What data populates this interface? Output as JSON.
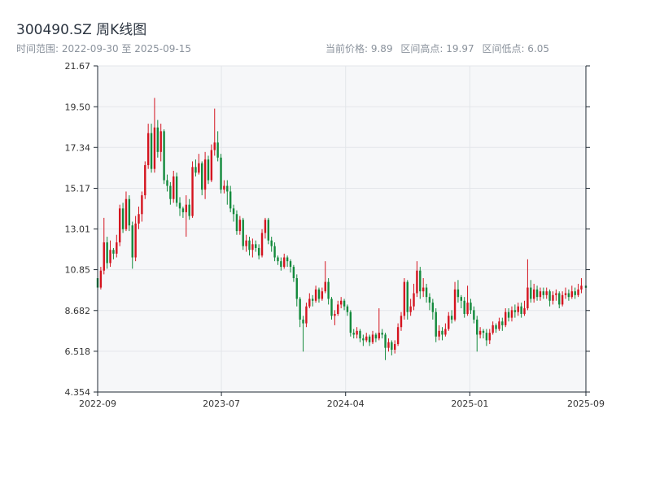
{
  "header": {
    "title": "300490.SZ 周K线图",
    "range_text": "时间范围: 2022-09-30 至 2025-09-15",
    "current_price": "当前价格: 9.89",
    "range_high": "区间高点: 19.97",
    "range_low": "区间低点: 6.05"
  },
  "colors": {
    "up": "#d4141f",
    "down": "#138a3c",
    "plot_bg": "#f6f7f9",
    "grid": "#e3e6ea",
    "axis": "#1f2933"
  },
  "chart_data": {
    "type": "candlestick",
    "title": "300490.SZ 周K线图",
    "x_start": "2022-09-30",
    "x_end": "2025-09-15",
    "ylim": [
      4.354,
      21.67
    ],
    "y_ticks": [
      "21.67",
      "19.50",
      "17.34",
      "15.17",
      "13.01",
      "10.85",
      "8.682",
      "6.518",
      "4.354"
    ],
    "x_ticks": [
      {
        "label": "2022-09",
        "date": "2022-09-30"
      },
      {
        "label": "2023-07",
        "date": "2023-07-01"
      },
      {
        "label": "2024-04",
        "date": "2024-04-01"
      },
      {
        "label": "2025-01",
        "date": "2025-01-01"
      },
      {
        "label": "2025-09",
        "date": "2025-09-15"
      }
    ],
    "grid": true,
    "candles": [
      [
        "2022-09-30",
        10.4,
        9.9,
        10.7,
        9.6
      ],
      [
        "2022-10-07",
        9.9,
        10.8,
        11.0,
        9.8
      ],
      [
        "2022-10-14",
        10.8,
        12.3,
        13.6,
        10.6
      ],
      [
        "2022-10-21",
        12.3,
        11.2,
        12.6,
        10.9
      ],
      [
        "2022-10-28",
        11.2,
        11.9,
        12.4,
        11.0
      ],
      [
        "2022-11-04",
        11.9,
        11.7,
        12.0,
        11.4
      ],
      [
        "2022-11-11",
        11.7,
        12.3,
        12.7,
        11.5
      ],
      [
        "2022-11-18",
        12.3,
        14.1,
        14.3,
        12.1
      ],
      [
        "2022-11-25",
        14.1,
        13.0,
        14.4,
        12.8
      ],
      [
        "2022-12-02",
        13.0,
        14.6,
        15.0,
        12.9
      ],
      [
        "2022-12-09",
        14.6,
        13.2,
        14.8,
        12.9
      ],
      [
        "2022-12-16",
        13.2,
        11.5,
        13.4,
        10.9
      ],
      [
        "2022-12-23",
        11.5,
        13.3,
        13.7,
        11.3
      ],
      [
        "2022-12-30",
        13.3,
        13.8,
        14.2,
        13.0
      ],
      [
        "2023-01-06",
        13.8,
        14.8,
        15.0,
        13.4
      ],
      [
        "2023-01-13",
        14.8,
        16.4,
        16.6,
        14.6
      ],
      [
        "2023-01-20",
        16.4,
        18.1,
        18.6,
        16.2
      ],
      [
        "2023-01-27",
        18.1,
        16.2,
        18.6,
        16.0
      ],
      [
        "2023-02-03",
        16.2,
        18.4,
        19.97,
        16.0
      ],
      [
        "2023-02-10",
        18.4,
        17.1,
        18.8,
        16.8
      ],
      [
        "2023-02-17",
        17.1,
        18.2,
        18.6,
        16.6
      ],
      [
        "2023-02-24",
        18.2,
        15.6,
        18.3,
        15.4
      ],
      [
        "2023-03-03",
        15.6,
        15.3,
        15.9,
        15.0
      ],
      [
        "2023-03-10",
        15.3,
        14.6,
        15.5,
        14.3
      ],
      [
        "2023-03-17",
        14.6,
        15.8,
        16.1,
        14.4
      ],
      [
        "2023-03-24",
        15.8,
        14.4,
        16.0,
        14.2
      ],
      [
        "2023-03-31",
        14.4,
        14.1,
        14.7,
        13.7
      ],
      [
        "2023-04-07",
        14.1,
        13.9,
        14.2,
        13.6
      ],
      [
        "2023-04-14",
        13.9,
        14.3,
        14.8,
        12.6
      ],
      [
        "2023-04-21",
        14.3,
        13.7,
        14.6,
        13.5
      ],
      [
        "2023-04-28",
        13.7,
        16.3,
        16.6,
        13.6
      ],
      [
        "2023-05-05",
        16.3,
        16.0,
        16.7,
        15.8
      ],
      [
        "2023-05-12",
        16.0,
        16.5,
        17.0,
        15.9
      ],
      [
        "2023-05-19",
        16.5,
        15.1,
        16.6,
        14.8
      ],
      [
        "2023-05-26",
        15.1,
        16.7,
        17.1,
        14.6
      ],
      [
        "2023-06-02",
        16.7,
        15.6,
        16.9,
        15.4
      ],
      [
        "2023-06-09",
        15.6,
        17.2,
        17.5,
        15.5
      ],
      [
        "2023-06-16",
        17.2,
        17.6,
        19.4,
        16.9
      ],
      [
        "2023-06-23",
        17.6,
        16.8,
        18.2,
        16.6
      ],
      [
        "2023-06-30",
        16.8,
        15.1,
        17.0,
        14.9
      ],
      [
        "2023-07-07",
        15.1,
        15.3,
        15.6,
        14.9
      ],
      [
        "2023-07-14",
        15.3,
        15.0,
        15.6,
        14.3
      ],
      [
        "2023-07-21",
        15.0,
        14.1,
        15.3,
        13.9
      ],
      [
        "2023-07-28",
        14.1,
        13.8,
        14.3,
        13.4
      ],
      [
        "2023-08-04",
        13.8,
        12.9,
        14.0,
        12.7
      ],
      [
        "2023-08-11",
        12.9,
        13.5,
        13.7,
        12.7
      ],
      [
        "2023-08-18",
        13.5,
        12.1,
        13.6,
        11.9
      ],
      [
        "2023-08-25",
        12.1,
        12.4,
        12.7,
        11.8
      ],
      [
        "2023-09-01",
        12.4,
        11.9,
        12.6,
        11.6
      ],
      [
        "2023-09-08",
        11.9,
        12.2,
        12.5,
        11.5
      ],
      [
        "2023-09-15",
        12.2,
        12.0,
        12.4,
        11.8
      ],
      [
        "2023-09-22",
        12.0,
        11.6,
        12.2,
        11.4
      ],
      [
        "2023-09-29",
        11.6,
        12.8,
        13.0,
        11.5
      ],
      [
        "2023-10-06",
        12.8,
        13.5,
        13.6,
        12.5
      ],
      [
        "2023-10-13",
        13.5,
        12.4,
        13.6,
        12.2
      ],
      [
        "2023-10-20",
        12.4,
        12.1,
        12.6,
        11.8
      ],
      [
        "2023-10-27",
        12.1,
        11.5,
        12.3,
        11.3
      ],
      [
        "2023-11-03",
        11.5,
        11.3,
        11.6,
        11.1
      ],
      [
        "2023-11-10",
        11.3,
        11.0,
        11.5,
        10.8
      ],
      [
        "2023-11-17",
        11.0,
        11.5,
        11.7,
        10.9
      ],
      [
        "2023-11-24",
        11.5,
        11.3,
        11.6,
        11.0
      ],
      [
        "2023-12-01",
        11.3,
        11.0,
        11.4,
        10.7
      ],
      [
        "2023-12-08",
        11.0,
        10.4,
        11.1,
        10.2
      ],
      [
        "2023-12-15",
        10.4,
        9.3,
        10.6,
        8.9
      ],
      [
        "2023-12-22",
        9.3,
        8.2,
        9.4,
        7.8
      ],
      [
        "2023-12-29",
        8.2,
        8.0,
        8.4,
        6.5
      ],
      [
        "2024-01-05",
        8.0,
        8.9,
        9.1,
        7.8
      ],
      [
        "2024-01-12",
        8.9,
        9.3,
        9.6,
        8.8
      ],
      [
        "2024-01-19",
        9.3,
        9.2,
        9.5,
        8.9
      ],
      [
        "2024-01-26",
        9.2,
        9.8,
        10.0,
        9.1
      ],
      [
        "2024-02-02",
        9.8,
        9.3,
        9.9,
        9.1
      ],
      [
        "2024-02-09",
        9.3,
        9.7,
        9.9,
        9.2
      ],
      [
        "2024-02-16",
        9.7,
        10.2,
        11.3,
        9.6
      ],
      [
        "2024-02-23",
        10.2,
        9.3,
        10.4,
        9.0
      ],
      [
        "2024-03-01",
        9.3,
        8.4,
        9.4,
        8.2
      ],
      [
        "2024-03-08",
        8.4,
        8.5,
        8.7,
        7.9
      ],
      [
        "2024-03-15",
        8.5,
        9.0,
        9.2,
        8.4
      ],
      [
        "2024-03-22",
        9.0,
        9.2,
        9.4,
        8.8
      ],
      [
        "2024-03-29",
        9.2,
        8.9,
        9.3,
        8.7
      ],
      [
        "2024-04-05",
        8.9,
        8.6,
        9.0,
        8.4
      ],
      [
        "2024-04-12",
        8.6,
        7.5,
        8.7,
        7.3
      ],
      [
        "2024-04-19",
        7.5,
        7.4,
        7.7,
        7.2
      ],
      [
        "2024-04-26",
        7.4,
        7.6,
        7.8,
        7.2
      ],
      [
        "2024-05-03",
        7.6,
        7.2,
        7.7,
        7.0
      ],
      [
        "2024-05-10",
        7.2,
        7.1,
        7.4,
        6.8
      ],
      [
        "2024-05-17",
        7.1,
        7.3,
        7.5,
        7.0
      ],
      [
        "2024-05-24",
        7.3,
        7.0,
        7.4,
        6.8
      ],
      [
        "2024-05-31",
        7.0,
        7.4,
        7.6,
        6.9
      ],
      [
        "2024-06-07",
        7.4,
        7.2,
        7.5,
        7.0
      ],
      [
        "2024-06-14",
        7.2,
        7.5,
        8.8,
        7.1
      ],
      [
        "2024-06-21",
        7.5,
        7.4,
        7.7,
        7.2
      ],
      [
        "2024-06-28",
        7.4,
        6.7,
        7.5,
        6.05
      ],
      [
        "2024-07-05",
        6.7,
        7.0,
        7.2,
        6.5
      ],
      [
        "2024-07-12",
        7.0,
        6.6,
        7.1,
        6.3
      ],
      [
        "2024-07-19",
        6.6,
        6.9,
        7.1,
        6.4
      ],
      [
        "2024-07-26",
        6.9,
        7.8,
        8.0,
        6.8
      ],
      [
        "2024-08-02",
        7.8,
        8.4,
        8.6,
        7.6
      ],
      [
        "2024-08-09",
        8.4,
        10.2,
        10.4,
        8.2
      ],
      [
        "2024-08-16",
        10.2,
        8.6,
        10.3,
        8.2
      ],
      [
        "2024-08-23",
        8.6,
        8.9,
        9.3,
        8.4
      ],
      [
        "2024-08-30",
        8.9,
        9.6,
        10.1,
        8.7
      ],
      [
        "2024-09-06",
        9.6,
        10.8,
        11.3,
        9.4
      ],
      [
        "2024-09-13",
        10.8,
        9.7,
        11.0,
        9.3
      ],
      [
        "2024-09-20",
        9.7,
        9.9,
        10.4,
        9.4
      ],
      [
        "2024-09-27",
        9.9,
        9.4,
        10.1,
        9.1
      ],
      [
        "2024-10-04",
        9.4,
        9.1,
        9.6,
        8.7
      ],
      [
        "2024-10-11",
        9.1,
        8.6,
        9.3,
        8.2
      ],
      [
        "2024-10-18",
        8.6,
        7.3,
        8.8,
        7.0
      ],
      [
        "2024-10-25",
        7.3,
        7.6,
        7.9,
        7.1
      ],
      [
        "2024-11-01",
        7.6,
        7.4,
        7.8,
        7.1
      ],
      [
        "2024-11-08",
        7.4,
        7.7,
        8.0,
        7.3
      ],
      [
        "2024-11-15",
        7.7,
        8.4,
        8.6,
        7.6
      ],
      [
        "2024-11-22",
        8.4,
        8.2,
        8.7,
        8.0
      ],
      [
        "2024-11-29",
        8.2,
        9.8,
        10.2,
        8.1
      ],
      [
        "2024-12-06",
        9.8,
        9.4,
        10.3,
        9.1
      ],
      [
        "2024-12-13",
        9.4,
        9.2,
        9.5,
        8.8
      ],
      [
        "2024-12-20",
        9.2,
        8.5,
        9.4,
        8.3
      ],
      [
        "2024-12-27",
        8.5,
        9.1,
        10.0,
        8.4
      ],
      [
        "2025-01-03",
        9.1,
        8.7,
        9.3,
        8.5
      ],
      [
        "2025-01-10",
        8.7,
        8.2,
        8.9,
        8.0
      ],
      [
        "2025-01-17",
        8.2,
        7.4,
        8.4,
        6.5
      ],
      [
        "2025-01-24",
        7.4,
        7.6,
        7.8,
        7.2
      ],
      [
        "2025-01-31",
        7.6,
        7.5,
        7.7,
        7.2
      ],
      [
        "2025-02-07",
        7.5,
        7.1,
        7.7,
        6.8
      ],
      [
        "2025-02-14",
        7.1,
        7.5,
        7.7,
        6.9
      ],
      [
        "2025-02-21",
        7.5,
        7.9,
        8.1,
        7.4
      ],
      [
        "2025-02-28",
        7.9,
        7.7,
        8.0,
        7.5
      ],
      [
        "2025-03-07",
        7.7,
        8.1,
        8.3,
        7.6
      ],
      [
        "2025-03-14",
        8.1,
        7.9,
        8.3,
        7.6
      ],
      [
        "2025-03-21",
        7.9,
        8.6,
        8.8,
        7.8
      ],
      [
        "2025-03-28",
        8.6,
        8.3,
        8.8,
        8.1
      ],
      [
        "2025-04-04",
        8.3,
        8.7,
        8.9,
        8.1
      ],
      [
        "2025-04-11",
        8.7,
        8.6,
        9.0,
        8.3
      ],
      [
        "2025-04-18",
        8.6,
        8.9,
        9.1,
        8.4
      ],
      [
        "2025-04-25",
        8.9,
        8.5,
        9.1,
        8.3
      ],
      [
        "2025-05-02",
        8.5,
        8.8,
        9.2,
        8.4
      ],
      [
        "2025-05-09",
        8.8,
        9.9,
        11.4,
        8.7
      ],
      [
        "2025-05-16",
        9.9,
        9.3,
        10.3,
        9.1
      ],
      [
        "2025-05-23",
        9.3,
        9.8,
        10.1,
        9.1
      ],
      [
        "2025-05-30",
        9.8,
        9.4,
        10.0,
        9.2
      ],
      [
        "2025-06-06",
        9.4,
        9.7,
        9.9,
        9.2
      ],
      [
        "2025-06-13",
        9.7,
        9.5,
        9.9,
        9.3
      ],
      [
        "2025-06-20",
        9.5,
        9.7,
        9.9,
        9.3
      ],
      [
        "2025-06-27",
        9.7,
        9.2,
        9.8,
        8.9
      ],
      [
        "2025-07-04",
        9.2,
        9.5,
        9.7,
        9.0
      ],
      [
        "2025-07-11",
        9.5,
        9.6,
        9.8,
        9.2
      ],
      [
        "2025-07-18",
        9.6,
        9.0,
        9.7,
        8.8
      ],
      [
        "2025-07-25",
        9.0,
        9.5,
        9.7,
        8.9
      ],
      [
        "2025-08-01",
        9.5,
        9.6,
        9.9,
        9.3
      ],
      [
        "2025-08-08",
        9.6,
        9.4,
        9.8,
        9.2
      ],
      [
        "2025-08-15",
        9.4,
        9.7,
        10.0,
        9.3
      ],
      [
        "2025-08-22",
        9.7,
        9.5,
        9.9,
        9.3
      ],
      [
        "2025-08-29",
        9.5,
        9.8,
        10.1,
        9.4
      ],
      [
        "2025-09-05",
        9.8,
        10.0,
        10.4,
        9.6
      ],
      [
        "2025-09-15",
        10.0,
        9.89,
        10.2,
        9.7
      ]
    ]
  }
}
